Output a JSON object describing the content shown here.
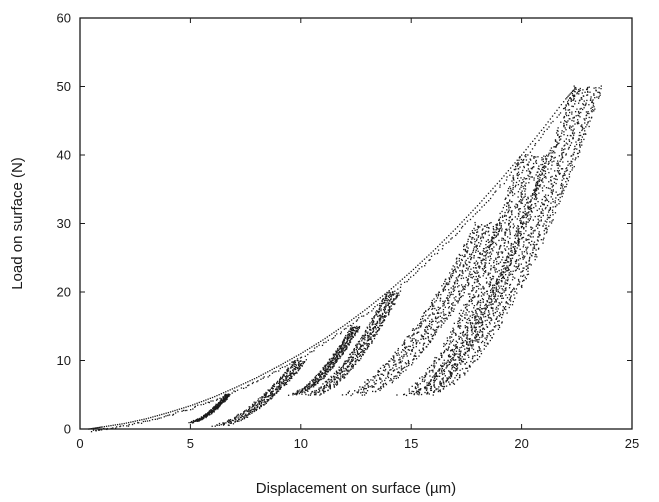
{
  "chart_data": {
    "type": "scatter",
    "title": "",
    "xlabel": "Displacement on surface (µm)",
    "ylabel": "Load on surface (N)",
    "xlim": [
      0,
      25
    ],
    "ylim": [
      0,
      60
    ],
    "x_ticks": [
      0,
      5,
      10,
      15,
      20,
      25
    ],
    "y_ticks": [
      0,
      10,
      20,
      30,
      40,
      50,
      60
    ],
    "grid": false,
    "legend": "none",
    "marker_color": "#1a1a1a",
    "loading_curve": [
      [
        0.4,
        0.0
      ],
      [
        1.0,
        0.3
      ],
      [
        2.0,
        0.8
      ],
      [
        3.0,
        1.5
      ],
      [
        4.0,
        2.4
      ],
      [
        5.0,
        3.4
      ],
      [
        6.0,
        4.6
      ],
      [
        7.0,
        6.0
      ],
      [
        8.0,
        7.5
      ],
      [
        9.0,
        9.2
      ],
      [
        10.0,
        11.0
      ],
      [
        11.0,
        13.0
      ],
      [
        12.0,
        15.2
      ],
      [
        13.0,
        17.6
      ],
      [
        14.0,
        20.2
      ],
      [
        15.0,
        23.0
      ],
      [
        16.0,
        26.0
      ],
      [
        17.0,
        29.2
      ],
      [
        18.0,
        32.6
      ],
      [
        19.0,
        36.2
      ],
      [
        20.0,
        40.0
      ],
      [
        21.0,
        44.0
      ],
      [
        22.0,
        48.2
      ],
      [
        22.5,
        50.0
      ]
    ],
    "unloading_branches": [
      {
        "start": [
          5.0,
          1.0
        ],
        "end": [
          6.7,
          5.0
        ],
        "spread": 0.15
      },
      {
        "start": [
          6.2,
          0.5
        ],
        "end": [
          10.0,
          10.0
        ],
        "spread": 0.4
      },
      {
        "start": [
          9.6,
          5.0
        ],
        "end": [
          12.5,
          15.0
        ],
        "spread": 0.3
      },
      {
        "start": [
          10.4,
          5.0
        ],
        "end": [
          14.2,
          20.0
        ],
        "spread": 0.45
      },
      {
        "start": [
          12.3,
          5.0
        ],
        "end": [
          18.5,
          30.0
        ],
        "spread": 0.9
      },
      {
        "start": [
          15.0,
          5.0
        ],
        "end": [
          20.6,
          40.0
        ],
        "spread": 1.0
      },
      {
        "start": [
          15.3,
          5.0
        ],
        "end": [
          23.0,
          50.0
        ],
        "spread": 1.0
      }
    ]
  }
}
